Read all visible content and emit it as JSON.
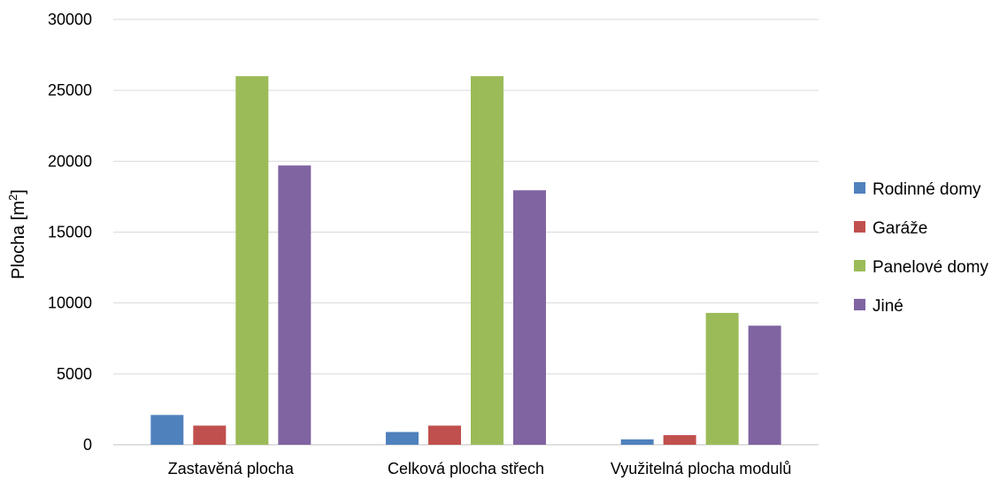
{
  "chart_data": {
    "type": "bar",
    "title": "",
    "xlabel": "",
    "ylabel": "Plocha [m",
    "ylabel_sup": "2",
    "ylabel_suffix": "]",
    "ylim": [
      0,
      30000
    ],
    "yticks": [
      0,
      5000,
      10000,
      15000,
      20000,
      25000,
      30000
    ],
    "ytick_labels": [
      "0",
      "5000",
      "10000",
      "15000",
      "20000",
      "25000",
      "30000"
    ],
    "grid": true,
    "legend_position": "right",
    "categories": [
      "Zastavěná plocha",
      "Celková plocha střech",
      "Využitelná plocha modulů"
    ],
    "series": [
      {
        "name": "Rodinné domy",
        "color": "#4f81bd",
        "values": [
          2100,
          900,
          380
        ]
      },
      {
        "name": "Garáže",
        "color": "#c0504d",
        "values": [
          1350,
          1350,
          680
        ]
      },
      {
        "name": "Panelové domy",
        "color": "#9bbb59",
        "values": [
          26000,
          26000,
          9300
        ]
      },
      {
        "name": "Jiné",
        "color": "#8064a2",
        "values": [
          19700,
          17950,
          8400
        ]
      }
    ]
  }
}
